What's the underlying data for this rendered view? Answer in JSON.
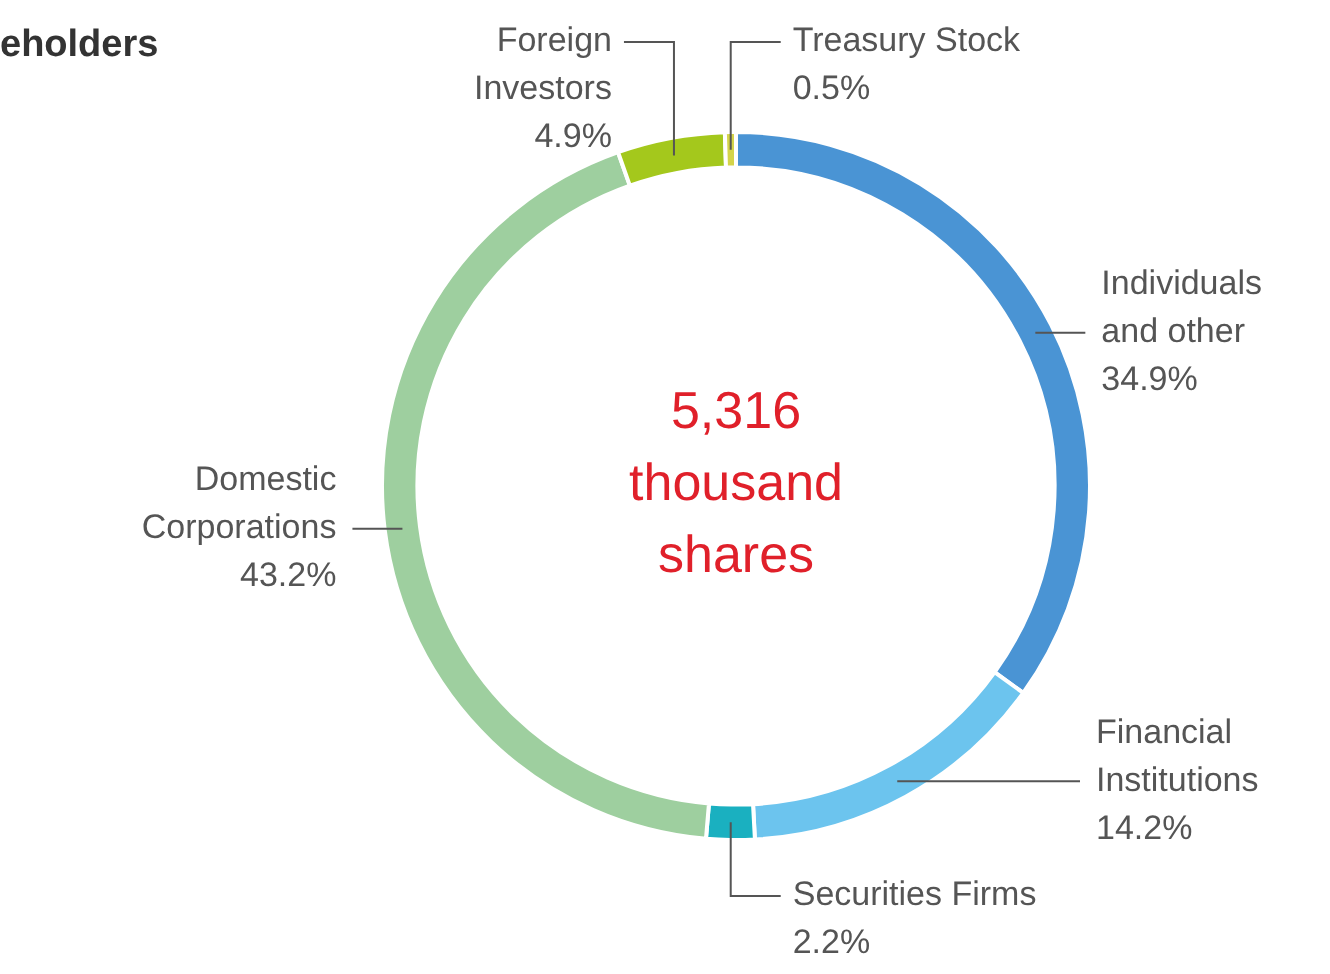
{
  "chart_data": {
    "type": "donut",
    "title": "eholders",
    "categories": [
      "Individuals and other",
      "Financial Institutions",
      "Securities Firms",
      "Domestic Corporations",
      "Foreign Investors",
      "Treasury Stock"
    ],
    "values": [
      34.9,
      14.2,
      2.2,
      43.2,
      4.9,
      0.5
    ],
    "value_labels": [
      "34.9%",
      "14.2%",
      "2.2%",
      "43.2%",
      "4.9%",
      "0.5%"
    ],
    "colors": [
      "#4a94d4",
      "#6cc4ee",
      "#1ab0c0",
      "#9ecf9f",
      "#a4c81c",
      "#d4d44a"
    ],
    "annotations": [
      "5,316 thousand shares"
    ],
    "legend": false
  }
}
